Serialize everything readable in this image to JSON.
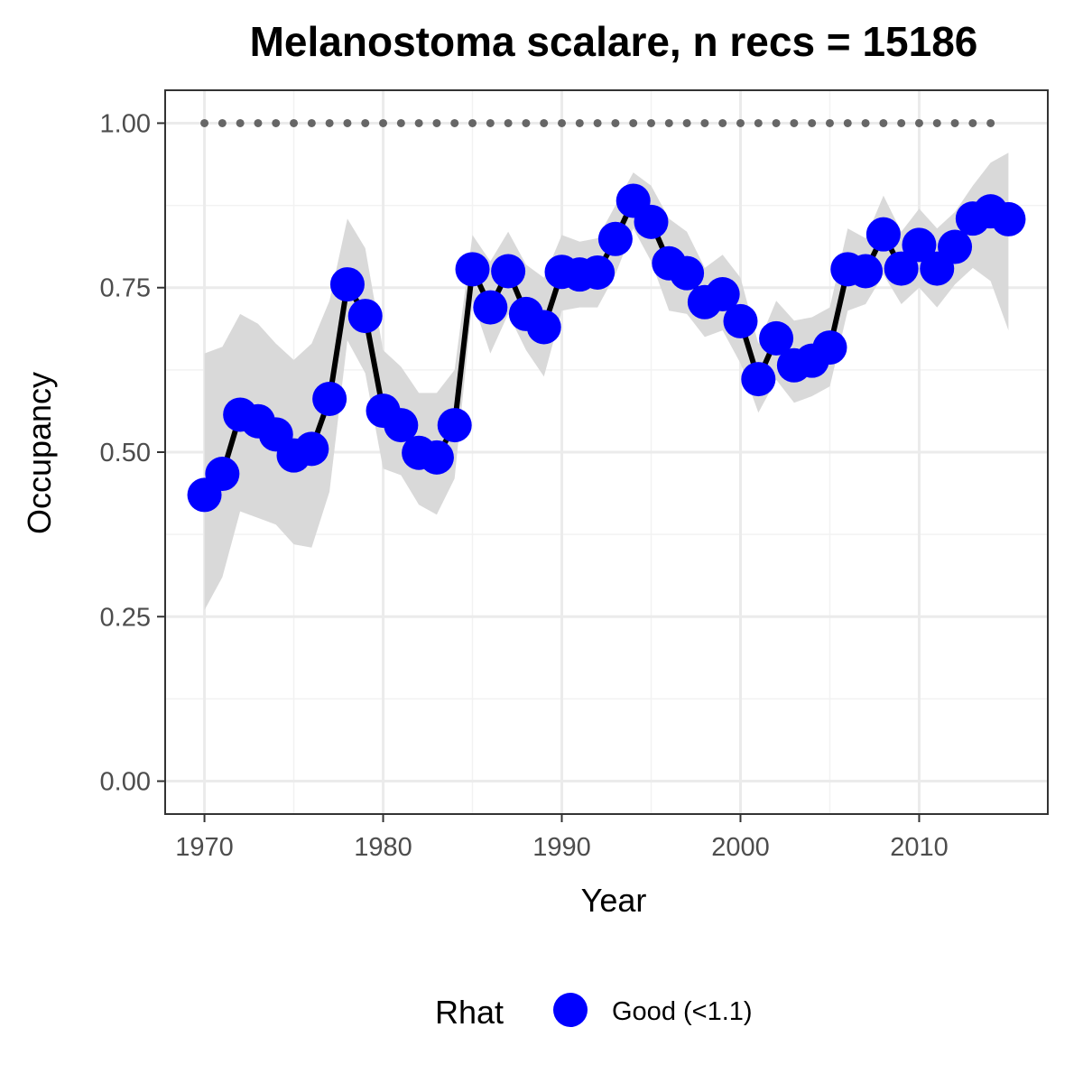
{
  "chart_data": {
    "type": "line",
    "title": "Melanostoma scalare, n recs = 15186",
    "xlabel": "Year",
    "ylabel": "Occupancy",
    "xlim": [
      1967.8,
      2017.2
    ],
    "ylim": [
      -0.05,
      1.05
    ],
    "x_ticks": [
      1970,
      1980,
      1990,
      2000,
      2010
    ],
    "x_tick_labels": [
      "1970",
      "1980",
      "1990",
      "2000",
      "2010"
    ],
    "y_ticks": [
      0,
      0.25,
      0.5,
      0.75,
      1
    ],
    "y_tick_labels": [
      "0.00",
      "0.25",
      "0.50",
      "0.75",
      "1.00"
    ],
    "grid": true,
    "series": [
      {
        "role": "mean",
        "color": "#0000ff",
        "line_color": "#000000",
        "x": [
          1970,
          1971,
          1972,
          1973,
          1974,
          1975,
          1976,
          1977,
          1978,
          1979,
          1980,
          1981,
          1982,
          1983,
          1984,
          1985,
          1986,
          1987,
          1988,
          1989,
          1990,
          1991,
          1992,
          1993,
          1994,
          1995,
          1996,
          1997,
          1998,
          1999,
          2000,
          2001,
          2002,
          2003,
          2004,
          2005,
          2006,
          2007,
          2008,
          2009,
          2010,
          2011,
          2012,
          2013,
          2014,
          2015
        ],
        "y": [
          0.435,
          0.467,
          0.557,
          0.547,
          0.527,
          0.495,
          0.505,
          0.581,
          0.755,
          0.707,
          0.563,
          0.541,
          0.499,
          0.492,
          0.541,
          0.778,
          0.72,
          0.775,
          0.71,
          0.69,
          0.774,
          0.77,
          0.773,
          0.824,
          0.882,
          0.85,
          0.787,
          0.772,
          0.728,
          0.74,
          0.699,
          0.611,
          0.673,
          0.632,
          0.639,
          0.659,
          0.778,
          0.775,
          0.831,
          0.779,
          0.815,
          0.779,
          0.812,
          0.855,
          0.866,
          0.854
        ]
      },
      {
        "role": "credible_interval",
        "color": "#d9d9d9",
        "x": [
          1970,
          1971,
          1972,
          1973,
          1974,
          1975,
          1976,
          1977,
          1978,
          1979,
          1980,
          1981,
          1982,
          1983,
          1984,
          1985,
          1986,
          1987,
          1988,
          1989,
          1990,
          1991,
          1992,
          1993,
          1994,
          1995,
          1996,
          1997,
          1998,
          1999,
          2000,
          2001,
          2002,
          2003,
          2004,
          2005,
          2006,
          2007,
          2008,
          2009,
          2010,
          2011,
          2012,
          2013,
          2014,
          2015
        ],
        "lower": [
          0.26,
          0.31,
          0.41,
          0.4,
          0.39,
          0.36,
          0.355,
          0.44,
          0.67,
          0.62,
          0.475,
          0.465,
          0.42,
          0.405,
          0.46,
          0.73,
          0.65,
          0.71,
          0.655,
          0.615,
          0.715,
          0.72,
          0.72,
          0.77,
          0.84,
          0.79,
          0.715,
          0.71,
          0.675,
          0.685,
          0.635,
          0.56,
          0.61,
          0.575,
          0.585,
          0.6,
          0.715,
          0.725,
          0.77,
          0.725,
          0.75,
          0.72,
          0.755,
          0.78,
          0.76,
          0.685
        ],
        "upper": [
          0.65,
          0.66,
          0.71,
          0.695,
          0.665,
          0.64,
          0.665,
          0.73,
          0.855,
          0.81,
          0.655,
          0.63,
          0.59,
          0.59,
          0.625,
          0.83,
          0.79,
          0.835,
          0.785,
          0.765,
          0.83,
          0.82,
          0.825,
          0.875,
          0.925,
          0.905,
          0.855,
          0.835,
          0.78,
          0.8,
          0.765,
          0.665,
          0.73,
          0.7,
          0.705,
          0.72,
          0.84,
          0.825,
          0.89,
          0.835,
          0.87,
          0.84,
          0.865,
          0.905,
          0.94,
          0.955
        ]
      },
      {
        "role": "reference",
        "color": "#666666",
        "x": [
          1970,
          1971,
          1972,
          1973,
          1974,
          1975,
          1976,
          1977,
          1978,
          1979,
          1980,
          1981,
          1982,
          1983,
          1984,
          1985,
          1986,
          1987,
          1988,
          1989,
          1990,
          1991,
          1992,
          1993,
          1994,
          1995,
          1996,
          1997,
          1998,
          1999,
          2000,
          2001,
          2002,
          2003,
          2004,
          2005,
          2006,
          2007,
          2008,
          2009,
          2010,
          2011,
          2012,
          2013,
          2014
        ],
        "y": [
          1,
          1,
          1,
          1,
          1,
          1,
          1,
          1,
          1,
          1,
          1,
          1,
          1,
          1,
          1,
          1,
          1,
          1,
          1,
          1,
          1,
          1,
          1,
          1,
          1,
          1,
          1,
          1,
          1,
          1,
          1,
          1,
          1,
          1,
          1,
          1,
          1,
          1,
          1,
          1,
          1,
          1,
          1,
          1,
          1
        ]
      }
    ],
    "legend": {
      "position": "bottom",
      "title": "Rhat",
      "entries": [
        {
          "label": "Good (<1.1)",
          "color": "#0000ff"
        }
      ]
    }
  }
}
